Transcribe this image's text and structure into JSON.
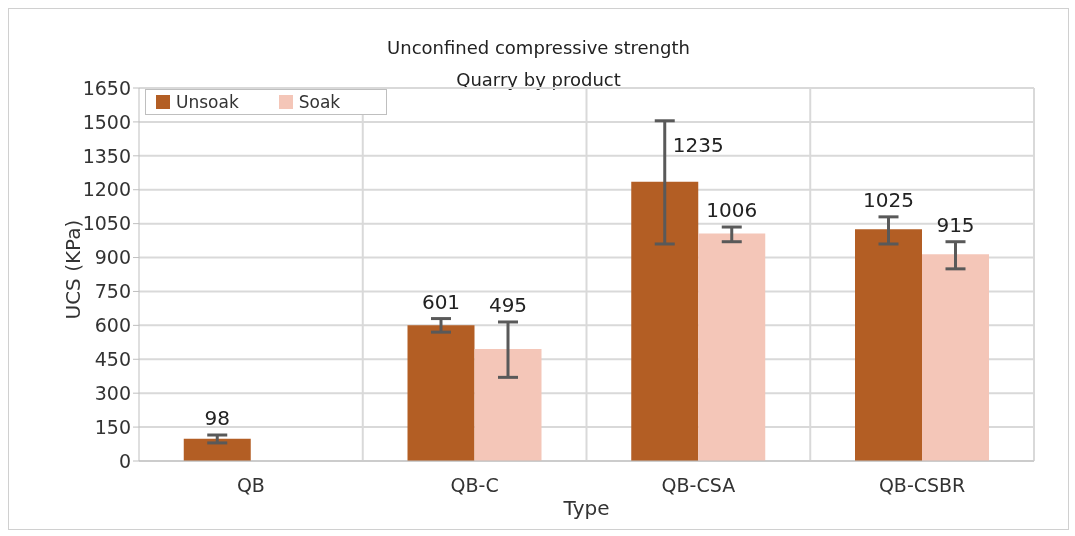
{
  "chart_data": {
    "type": "bar",
    "title": "Unconfined compressive strength",
    "subtitle": "Quarry by product",
    "xlabel": "Type",
    "ylabel": "UCS (KPa)",
    "categories": [
      "QB",
      "QB-C",
      "QB-CSA",
      "QB-CSBR"
    ],
    "series": [
      {
        "name": "Unsoak",
        "color": "#b35e24",
        "values": [
          98,
          601,
          1235,
          1025
        ],
        "errors": [
          [
            80,
            115
          ],
          [
            570,
            630
          ],
          [
            960,
            1505
          ],
          [
            960,
            1080
          ]
        ]
      },
      {
        "name": "Soak",
        "color": "#f4c6b8",
        "values": [
          null,
          495,
          1006,
          915
        ],
        "errors": [
          null,
          [
            370,
            615
          ],
          [
            970,
            1035
          ],
          [
            850,
            970
          ]
        ]
      }
    ],
    "ylim": [
      0,
      1650
    ],
    "yticks": [
      0,
      150,
      300,
      450,
      600,
      750,
      900,
      1050,
      1200,
      1350,
      1500,
      1650
    ],
    "grid": true,
    "legend": "top left",
    "data_labels": true
  }
}
